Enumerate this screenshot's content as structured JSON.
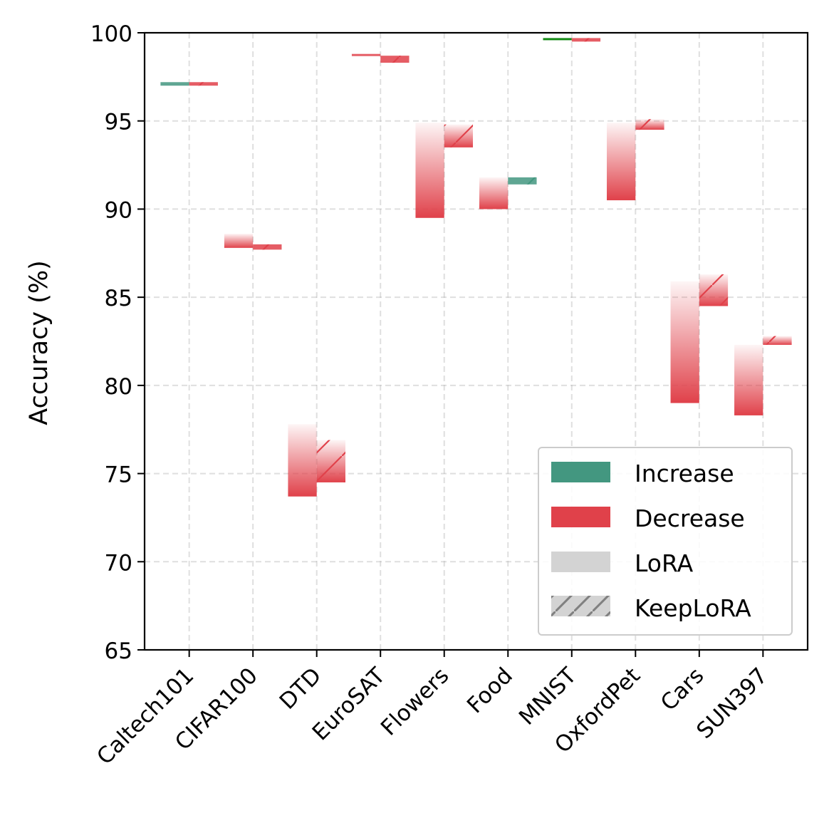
{
  "chart_data": {
    "type": "bar",
    "title": "",
    "xlabel": "",
    "ylabel": "Accuracy (%)",
    "ylim": [
      65,
      100
    ],
    "yticks": [
      65,
      70,
      75,
      80,
      85,
      90,
      95,
      100
    ],
    "grid": true,
    "legend_position": "lower-right",
    "categories": [
      "Caltech101",
      "CIFAR100",
      "DTD",
      "EuroSAT",
      "Flowers",
      "Food",
      "MNIST",
      "OxfordPet",
      "Cars",
      "SUN397"
    ],
    "series": [
      {
        "name": "LoRA",
        "start": [
          97.0,
          88.6,
          77.8,
          98.8,
          94.9,
          91.8,
          99.6,
          94.9,
          85.9,
          82.3
        ],
        "end": [
          97.2,
          87.8,
          73.7,
          98.7,
          89.5,
          90.0,
          99.7,
          90.5,
          79.0,
          78.3
        ]
      },
      {
        "name": "KeepLoRA",
        "start": [
          97.2,
          88.0,
          76.9,
          98.7,
          94.8,
          91.4,
          99.7,
          95.1,
          86.3,
          82.8
        ],
        "end": [
          97.0,
          87.7,
          74.5,
          98.3,
          93.5,
          91.8,
          99.5,
          94.5,
          84.5,
          82.3
        ]
      }
    ],
    "legend": [
      {
        "label": "Increase",
        "color": "#439780"
      },
      {
        "label": "Decrease",
        "color": "#e0414a"
      },
      {
        "label": "LoRA",
        "color": "#d3d3d3"
      },
      {
        "label": "KeepLoRA",
        "color": "#d3d3d3",
        "hatch": true
      }
    ],
    "colors": {
      "increase": "#439780",
      "increase_mnist": "#138a14",
      "decrease": "#e0414a",
      "hatch": "#808080"
    }
  }
}
